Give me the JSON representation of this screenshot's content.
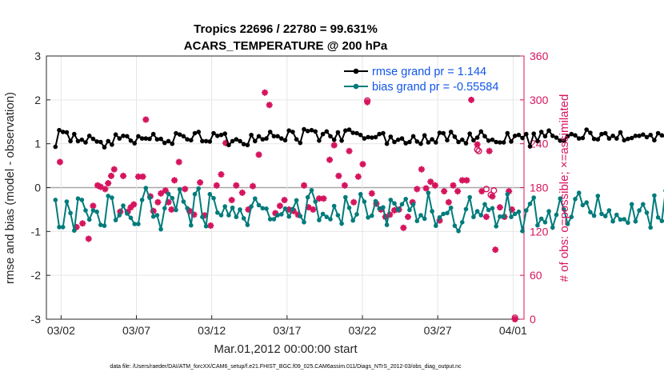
{
  "chart_data": {
    "type": "line",
    "title": [
      "Tropics 22696 / 22780 = 99.631%",
      "ACARS_TEMPERATURE @ 200 hPa"
    ],
    "xlabel": "Mar.01,2012 00:00:00 start",
    "ylabel": "rmse and bias (model - observation)",
    "y2label": "# of obs: o=possible; ×=assimilated",
    "footnote": "data file: /Users/raeder/DAI/ATM_forcXX/CAM6_setup/f.e21.FHIST_BGC.f09_025.CAM6assim.011/Diags_NTrS_2012-03/obs_diag_output.nc",
    "xlim": [
      -0.6,
      31.1
    ],
    "ylim": [
      -3,
      3
    ],
    "y2lim": [
      0,
      360
    ],
    "yticks": [
      "-3",
      "-2",
      "-1",
      "0",
      "1",
      "2",
      "3"
    ],
    "y2ticks": [
      "0",
      "60",
      "120",
      "180",
      "240",
      "300",
      "360"
    ],
    "xticks": [
      {
        "label": "03/02",
        "day": 0.375
      },
      {
        "label": "03/07",
        "day": 5.375
      },
      {
        "label": "03/12",
        "day": 10.375
      },
      {
        "label": "03/17",
        "day": 15.375
      },
      {
        "label": "03/22",
        "day": 20.375
      },
      {
        "label": "03/27",
        "day": 25.375
      },
      {
        "label": "04/01",
        "day": 30.375
      }
    ],
    "x_step_days": 0.25,
    "series": [
      {
        "name": "rmse grand pr = 1.144",
        "color": "#000000",
        "values": [
          0.93,
          1.31,
          1.27,
          1.26,
          1.06,
          1.22,
          1.06,
          1.09,
          1.03,
          1.18,
          1.11,
          1.05,
          1.04,
          0.92,
          1.06,
          0.98,
          1.21,
          1.12,
          1.18,
          1.17,
          1.07,
          1.01,
          1.17,
          1.12,
          1.12,
          1.11,
          1.22,
          1.1,
          1.11,
          1.02,
          1.06,
          1.0,
          1.24,
          1.21,
          1.17,
          1.1,
          1.08,
          1.24,
          1.27,
          1.06,
          1.06,
          1.05,
          1.24,
          1.18,
          1.2,
          1.23,
          0.97,
          1.06,
          1.1,
          1.06,
          0.99,
          0.97,
          1.2,
          1.06,
          1.17,
          1.1,
          1.12,
          1.27,
          1.17,
          1.17,
          1.12,
          1.08,
          1.3,
          1.27,
          1.1,
          1.02,
          1.33,
          1.29,
          1.31,
          1.28,
          1.07,
          1.22,
          1.28,
          1.17,
          1.09,
          1.26,
          1.07,
          1.3,
          1.32,
          1.25,
          1.24,
          1.2,
          1.12,
          1.15,
          1.14,
          1.15,
          1.22,
          1.24,
          1.0,
          1.16,
          1.04,
          1.09,
          1.12,
          1.01,
          1.04,
          1.17,
          1.05,
          1.0,
          1.19,
          1.03,
          1.1,
          1.03,
          1.25,
          1.24,
          1.08,
          1.27,
          1.16,
          1.04,
          1.09,
          1.01,
          1.23,
          1.08,
          1.14,
          1.28,
          1.17,
          1.07,
          1.09,
          1.04,
          1.03,
          1.03,
          1.24,
          1.05,
          1.18,
          1.2,
          1.13,
          1.22,
          0.94,
          1.23,
          1.06,
          1.27,
          1.17,
          1.3,
          1.18,
          1.14,
          1.07,
          1.07,
          1.17,
          1.22,
          1.19,
          1.12,
          1.13,
          1.32,
          1.25,
          1.11,
          1.1,
          1.22,
          1.24,
          1.12,
          1.18,
          1.12,
          1.26,
          1.08,
          1.11,
          1.13,
          1.18,
          1.18,
          1.21,
          1.15,
          1.2,
          1.08,
          1.24,
          1.19,
          1.17,
          1.03,
          1.12,
          1.3,
          1.13,
          1.28,
          1.24,
          1.15,
          1.1,
          1.16,
          1.25,
          1.3,
          1.15,
          1.15,
          1.12,
          1.15,
          1.18,
          1.15,
          1.14,
          1.17,
          1.14,
          1.13,
          1.13,
          1.16,
          1.02,
          1.13,
          1.15,
          1.13,
          1.61,
          1.59,
          1.16,
          1.14,
          1.32,
          1.57,
          1.48,
          0.92,
          1.03,
          1.06,
          1.06,
          1.16,
          1.05,
          1.07,
          1.32,
          1.24,
          1.01,
          1.21,
          1.03,
          1.05,
          1.02,
          1.01,
          1.13,
          1.02,
          1.01
        ]
      },
      {
        "name": "bias grand pr = -0.55584",
        "color": "#007b7b",
        "values": [
          -0.28,
          -0.9,
          -0.9,
          -0.32,
          -0.58,
          -0.98,
          -0.25,
          -0.28,
          -0.52,
          -0.73,
          -0.52,
          -0.55,
          -0.85,
          -0.87,
          -0.19,
          -0.23,
          -0.74,
          -0.63,
          -0.41,
          -0.59,
          -0.69,
          -0.83,
          -0.83,
          -0.28,
          -0.01,
          -0.23,
          -0.66,
          -0.63,
          -0.95,
          -0.47,
          -0.14,
          -0.24,
          -0.51,
          -0.04,
          -0.32,
          -0.47,
          -0.86,
          -0.15,
          -0.02,
          -0.67,
          -0.88,
          -0.15,
          -0.24,
          -0.57,
          -0.63,
          -0.43,
          -0.63,
          -0.46,
          -0.67,
          -0.5,
          -0.7,
          -0.85,
          -0.43,
          -0.25,
          -0.4,
          -0.47,
          -0.48,
          -0.72,
          -0.72,
          -0.63,
          -0.61,
          -0.48,
          -0.66,
          -0.49,
          -0.29,
          -0.65,
          -0.79,
          -0.22,
          -0.06,
          -0.32,
          -0.74,
          -0.6,
          -0.67,
          -0.72,
          -0.42,
          -0.63,
          -0.82,
          -0.22,
          -0.46,
          -0.75,
          -0.61,
          -0.15,
          -0.32,
          -0.68,
          -0.64,
          -0.31,
          -0.48,
          -0.45,
          -0.85,
          -0.28,
          -0.36,
          -0.51,
          -0.38,
          -0.26,
          -0.51,
          -0.38,
          -0.76,
          -0.63,
          -0.71,
          -0.12,
          -0.54,
          -0.87,
          -0.68,
          -0.6,
          -0.58,
          -0.46,
          -0.87,
          -0.99,
          -0.79,
          -0.49,
          -0.22,
          -0.67,
          -0.54,
          -0.63,
          -0.38,
          -0.51,
          -0.47,
          -0.88,
          -0.66,
          -0.66,
          -0.15,
          -0.67,
          -0.6,
          -0.55,
          -0.99,
          -0.52,
          -0.37,
          -0.23,
          -0.86,
          -0.71,
          -0.79,
          -0.54,
          -0.91,
          -0.62,
          -0.25,
          -0.5,
          -0.83,
          -0.67,
          -0.26,
          -0.12,
          -0.4,
          -0.34,
          -0.56,
          -0.64,
          -0.19,
          -0.6,
          -0.65,
          -0.52,
          -0.77,
          -0.62,
          -0.73,
          -0.72,
          -0.8,
          -0.38,
          -0.77,
          -0.52,
          -0.38,
          -0.57,
          -0.91,
          -0.18,
          -0.68,
          -0.76,
          -0.07,
          -0.73,
          -0.91,
          -0.48,
          -0.71,
          -0.65,
          -0.6,
          -0.49,
          -0.74,
          -0.48,
          -0.54,
          -0.5,
          -0.72,
          -0.53,
          -0.33,
          -0.62,
          -0.58,
          -0.78,
          -0.4,
          -0.24,
          -0.22,
          -0.69,
          -0.74,
          -0.57,
          -0.26,
          -0.53,
          -0.41,
          -0.61,
          -0.84,
          -0.59,
          -0.31,
          -0.81,
          -0.89,
          -0.4,
          -0.83,
          -0.86,
          -0.91,
          -0.55,
          -0.66,
          -0.9,
          -0.7,
          -0.22,
          -0.39,
          -0.6,
          -0.87,
          -0.25,
          -0.38,
          -0.5,
          -0.86,
          -0.21,
          -0.03
        ]
      }
    ],
    "obs_assimilated": [
      {
        "day": 0.3,
        "count": 215
      },
      {
        "day": 1.4,
        "count": 126
      },
      {
        "day": 1.8,
        "count": 131
      },
      {
        "day": 2.2,
        "count": 110
      },
      {
        "day": 2.5,
        "count": 155
      },
      {
        "day": 2.8,
        "count": 183
      },
      {
        "day": 3.0,
        "count": 181
      },
      {
        "day": 3.3,
        "count": 178
      },
      {
        "day": 3.5,
        "count": 186
      },
      {
        "day": 3.7,
        "count": 196
      },
      {
        "day": 3.9,
        "count": 205
      },
      {
        "day": 4.3,
        "count": 147
      },
      {
        "day": 4.5,
        "count": 196
      },
      {
        "day": 4.8,
        "count": 147
      },
      {
        "day": 5.0,
        "count": 153
      },
      {
        "day": 5.2,
        "count": 157
      },
      {
        "day": 5.5,
        "count": 195
      },
      {
        "day": 5.8,
        "count": 195
      },
      {
        "day": 6.0,
        "count": 273
      },
      {
        "day": 6.3,
        "count": 168
      },
      {
        "day": 6.5,
        "count": 148
      },
      {
        "day": 6.8,
        "count": 160
      },
      {
        "day": 7.0,
        "count": 172
      },
      {
        "day": 7.3,
        "count": 176
      },
      {
        "day": 7.5,
        "count": 160
      },
      {
        "day": 7.7,
        "count": 150
      },
      {
        "day": 7.9,
        "count": 190
      },
      {
        "day": 8.2,
        "count": 215
      },
      {
        "day": 8.6,
        "count": 178
      },
      {
        "day": 8.9,
        "count": 148
      },
      {
        "day": 9.2,
        "count": 143
      },
      {
        "day": 9.6,
        "count": 187
      },
      {
        "day": 9.9,
        "count": 142
      },
      {
        "day": 10.3,
        "count": 128
      },
      {
        "day": 10.7,
        "count": 183
      },
      {
        "day": 11.0,
        "count": 198
      },
      {
        "day": 11.3,
        "count": 241
      },
      {
        "day": 11.7,
        "count": 163
      },
      {
        "day": 12.0,
        "count": 183
      },
      {
        "day": 12.4,
        "count": 173
      },
      {
        "day": 12.8,
        "count": 150
      },
      {
        "day": 13.1,
        "count": 182
      },
      {
        "day": 13.5,
        "count": 225
      },
      {
        "day": 13.9,
        "count": 310
      },
      {
        "day": 14.2,
        "count": 293
      },
      {
        "day": 14.6,
        "count": 145
      },
      {
        "day": 14.9,
        "count": 155
      },
      {
        "day": 15.2,
        "count": 163
      },
      {
        "day": 15.5,
        "count": 150
      },
      {
        "day": 15.8,
        "count": 148
      },
      {
        "day": 16.1,
        "count": 143
      },
      {
        "day": 16.5,
        "count": 183
      },
      {
        "day": 16.8,
        "count": 153
      },
      {
        "day": 17.1,
        "count": 150
      },
      {
        "day": 17.5,
        "count": 165
      },
      {
        "day": 17.8,
        "count": 165
      },
      {
        "day": 18.2,
        "count": 218
      },
      {
        "day": 18.5,
        "count": 238
      },
      {
        "day": 18.8,
        "count": 196
      },
      {
        "day": 19.2,
        "count": 183
      },
      {
        "day": 19.5,
        "count": 230
      },
      {
        "day": 19.8,
        "count": 160
      },
      {
        "day": 20.1,
        "count": 195
      },
      {
        "day": 20.4,
        "count": 212
      },
      {
        "day": 20.7,
        "count": 297
      },
      {
        "day": 21.0,
        "count": 172
      },
      {
        "day": 21.3,
        "count": 158
      },
      {
        "day": 21.6,
        "count": 150
      },
      {
        "day": 21.9,
        "count": 140
      },
      {
        "day": 22.2,
        "count": 143
      },
      {
        "day": 22.5,
        "count": 149
      },
      {
        "day": 22.8,
        "count": 150
      },
      {
        "day": 23.1,
        "count": 125
      },
      {
        "day": 23.4,
        "count": 140
      },
      {
        "day": 23.7,
        "count": 160
      },
      {
        "day": 24.0,
        "count": 178
      },
      {
        "day": 24.3,
        "count": 205
      },
      {
        "day": 24.6,
        "count": 179
      },
      {
        "day": 24.9,
        "count": 188
      },
      {
        "day": 25.2,
        "count": 183
      },
      {
        "day": 25.5,
        "count": 135
      },
      {
        "day": 25.8,
        "count": 175
      },
      {
        "day": 26.1,
        "count": 160
      },
      {
        "day": 26.4,
        "count": 183
      },
      {
        "day": 26.7,
        "count": 175
      },
      {
        "day": 27.0,
        "count": 190
      },
      {
        "day": 27.3,
        "count": 190
      },
      {
        "day": 27.6,
        "count": 300
      },
      {
        "day": 28.0,
        "count": 239
      },
      {
        "day": 28.3,
        "count": 175
      },
      {
        "day": 28.6,
        "count": 140
      },
      {
        "day": 28.8,
        "count": 230
      },
      {
        "day": 29.0,
        "count": 168
      },
      {
        "day": 29.2,
        "count": 95
      },
      {
        "day": 29.5,
        "count": 153
      },
      {
        "day": 29.8,
        "count": 140
      },
      {
        "day": 30.1,
        "count": 175
      },
      {
        "day": 30.3,
        "count": 150
      },
      {
        "day": 30.5,
        "count": 0
      }
    ],
    "obs_possible": [
      {
        "day": 20.7,
        "count": 299
      },
      {
        "day": 28.0,
        "count": 232
      },
      {
        "day": 28.1,
        "count": 230
      },
      {
        "day": 28.6,
        "count": 178
      },
      {
        "day": 28.9,
        "count": 170
      },
      {
        "day": 29.1,
        "count": 176
      },
      {
        "day": 30.5,
        "count": 2
      }
    ]
  }
}
